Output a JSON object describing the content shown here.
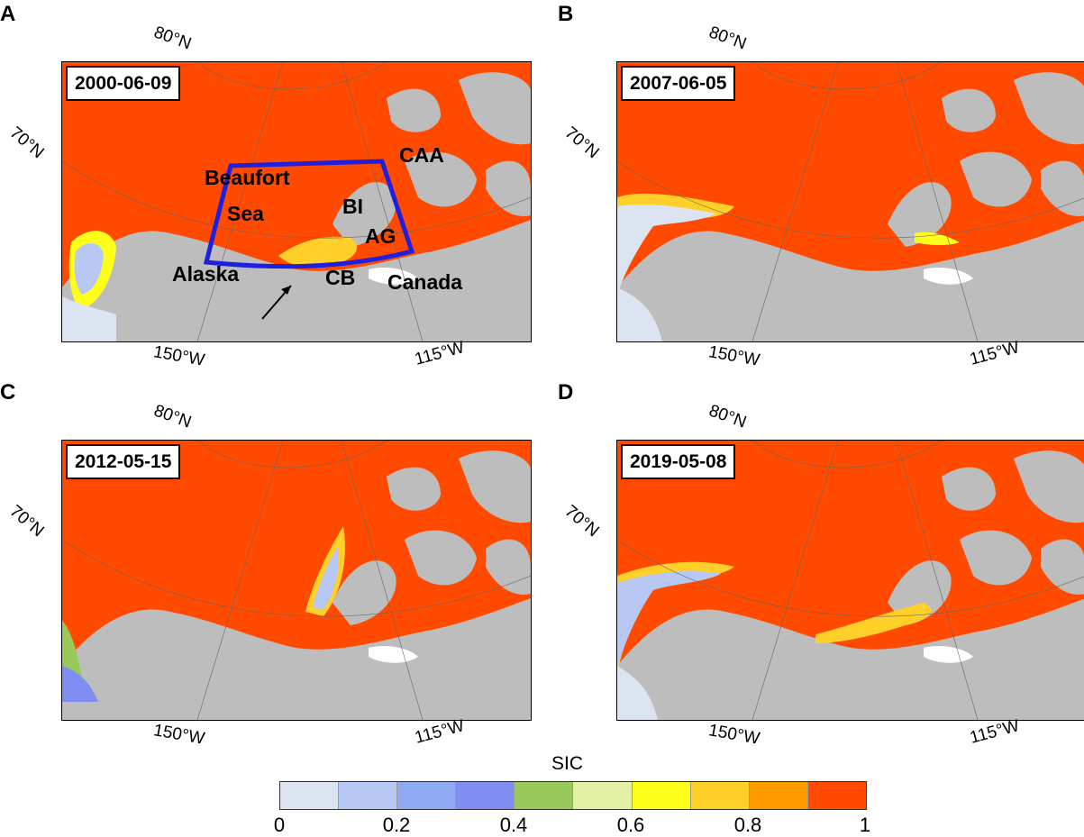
{
  "panels": [
    {
      "letter": "A",
      "date": "2000-06-09",
      "lat_labels": [
        "80°N",
        "70°N"
      ],
      "lon_labels": [
        "150°W",
        "115°W"
      ]
    },
    {
      "letter": "B",
      "date": "2007-06-05",
      "lat_labels": [
        "80°N",
        "70°N"
      ],
      "lon_labels": [
        "150°W",
        "115°W"
      ]
    },
    {
      "letter": "C",
      "date": "2012-05-15",
      "lat_labels": [
        "80°N",
        "70°N"
      ],
      "lon_labels": [
        "150°W",
        "115°W"
      ]
    },
    {
      "letter": "D",
      "date": "2019-05-08",
      "lat_labels": [
        "80°N",
        "70°N"
      ],
      "lon_labels": [
        "150°W",
        "115°W"
      ]
    }
  ],
  "regions": {
    "beaufort": "Beaufort",
    "sea": "Sea",
    "caa": "CAA",
    "bi": "BI",
    "ag": "AG",
    "alaska": "Alaska",
    "cb": "CB",
    "canada": "Canada"
  },
  "colorbar": {
    "title": "SIC",
    "ticks": [
      "0",
      "0.2",
      "0.4",
      "0.6",
      "0.8",
      "1"
    ],
    "colors": [
      "#dbe4f0",
      "#b7c8f4",
      "#8fa9f2",
      "#7f8ef0",
      "#99c95a",
      "#e2f0a5",
      "#ffff1a",
      "#ffd02a",
      "#ff9900",
      "#ff4a00"
    ]
  },
  "colors": {
    "ice": "#ff4a00",
    "land": "#bdbdbd",
    "box": "#1f1fe0"
  }
}
